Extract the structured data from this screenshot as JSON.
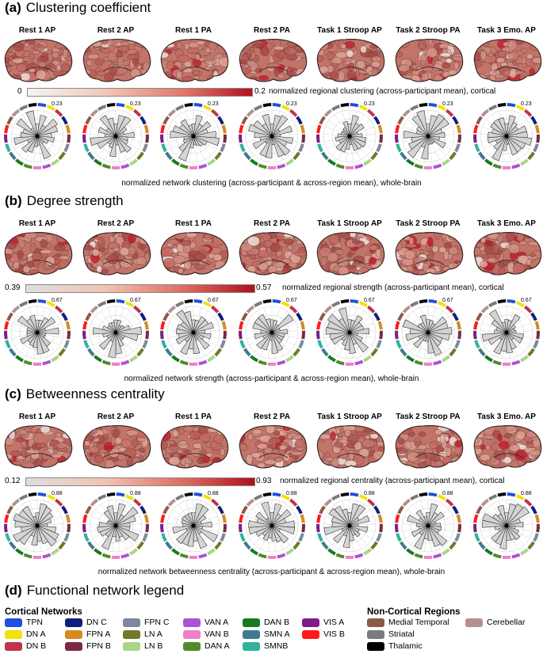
{
  "columns": [
    "Rest 1 AP",
    "Rest 2 AP",
    "Rest 1 PA",
    "Rest 2 PA",
    "Task 1 Stroop AP",
    "Task 2 Stroop PA",
    "Task 3 Emo. AP"
  ],
  "panels": [
    {
      "letter": "(a)",
      "title": "Clustering coefficient",
      "cbar_min": "0",
      "cbar_max": "0.2",
      "cbar_caption": "normalized regional clustering (across-participant mean), cortical",
      "rose_max": "0.23",
      "rose_caption": "normalized network clustering (across-participant & across-region mean), whole-brain",
      "brain_shade": 0.45
    },
    {
      "letter": "(b)",
      "title": "Degree strength",
      "cbar_min": "0.39",
      "cbar_max": "0.57",
      "cbar_caption": "normalized regional strength (across-participant mean), cortical",
      "rose_max": "0.67",
      "rose_caption": "normalized network strength (across-participant & across-region mean), whole-brain",
      "brain_shade": 0.6
    },
    {
      "letter": "(c)",
      "title": "Betweenness centrality",
      "cbar_min": "0.12",
      "cbar_max": "0.93",
      "cbar_caption": "normalized regional centrality (across-participant mean), cortical",
      "rose_max": "0.88",
      "rose_caption": "normalized network betweenness centrality (across-participant & across-region mean), whole-brain",
      "brain_shade": 0.5
    }
  ],
  "legend": {
    "letter": "(d)",
    "title": "Functional network legend",
    "cortical_head": "Cortical Networks",
    "noncortical_head": "Non-Cortical Regions",
    "cortical": [
      {
        "label": "TPN",
        "color": "#1f4fe0"
      },
      {
        "label": "DN A",
        "color": "#f2e10a"
      },
      {
        "label": "DN B",
        "color": "#c0334a"
      },
      {
        "label": "DN C",
        "color": "#0e1f80"
      },
      {
        "label": "FPN A",
        "color": "#d58a22"
      },
      {
        "label": "FPN B",
        "color": "#7a2a45"
      },
      {
        "label": "FPN C",
        "color": "#7a8a9c"
      },
      {
        "label": "LN A",
        "color": "#6f7a2a"
      },
      {
        "label": "LN B",
        "color": "#a8d682"
      },
      {
        "label": "VAN A",
        "color": "#b04fd8"
      },
      {
        "label": "VAN B",
        "color": "#ee7fc8"
      },
      {
        "label": "DAN A",
        "color": "#4f8a2c"
      },
      {
        "label": "DAN B",
        "color": "#167a22"
      },
      {
        "label": "SMN A",
        "color": "#3f7a8e"
      },
      {
        "label": "SMNB",
        "color": "#2fb39a"
      },
      {
        "label": "VIS A",
        "color": "#7d1c8a"
      },
      {
        "label": "VIS B",
        "color": "#ff1a1a"
      }
    ],
    "noncortical": [
      {
        "label": "Medial Temporal",
        "color": "#8a5a4a"
      },
      {
        "label": "Cerebellar",
        "color": "#b59090"
      },
      {
        "label": "Striatal",
        "color": "#7a7a7a"
      },
      {
        "label": "Thalamic",
        "color": "#000000"
      }
    ]
  }
}
